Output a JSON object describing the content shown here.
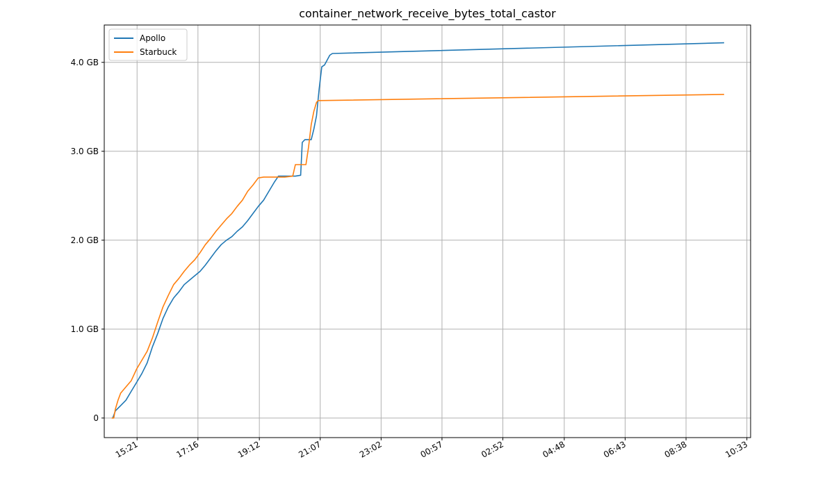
{
  "chart_data": {
    "type": "line",
    "title": "container_network_receive_bytes_total_castor",
    "xlabel": "",
    "ylabel": "",
    "x_ticks": [
      "15:21",
      "17:16",
      "19:12",
      "21:07",
      "23:02",
      "00:57",
      "02:52",
      "04:48",
      "06:43",
      "08:38",
      "10:33"
    ],
    "y_ticks": [
      {
        "value": 0,
        "label": "0"
      },
      {
        "value": 1.0,
        "label": "1.0 GB"
      },
      {
        "value": 2.0,
        "label": "2.0 GB"
      },
      {
        "value": 3.0,
        "label": "3.0 GB"
      },
      {
        "value": 4.0,
        "label": "4.0 GB"
      }
    ],
    "xlim": [
      "14:19",
      "10:40"
    ],
    "ylim": [
      -0.22,
      4.42
    ],
    "y_unit": "GB",
    "grid": true,
    "legend_position": "top-left",
    "series": [
      {
        "name": "Apollo",
        "color": "#1f77b4",
        "points": [
          [
            "14:35",
            0.0
          ],
          [
            "14:40",
            0.08
          ],
          [
            "14:50",
            0.14
          ],
          [
            "15:00",
            0.2
          ],
          [
            "15:10",
            0.3
          ],
          [
            "15:20",
            0.4
          ],
          [
            "15:30",
            0.5
          ],
          [
            "15:40",
            0.62
          ],
          [
            "15:50",
            0.8
          ],
          [
            "16:00",
            0.95
          ],
          [
            "16:10",
            1.12
          ],
          [
            "16:20",
            1.25
          ],
          [
            "16:30",
            1.35
          ],
          [
            "16:40",
            1.42
          ],
          [
            "16:50",
            1.5
          ],
          [
            "17:00",
            1.55
          ],
          [
            "17:10",
            1.6
          ],
          [
            "17:20",
            1.65
          ],
          [
            "17:30",
            1.72
          ],
          [
            "17:40",
            1.8
          ],
          [
            "17:50",
            1.88
          ],
          [
            "18:00",
            1.95
          ],
          [
            "18:10",
            2.0
          ],
          [
            "18:20",
            2.04
          ],
          [
            "18:30",
            2.1
          ],
          [
            "18:40",
            2.15
          ],
          [
            "18:50",
            2.22
          ],
          [
            "19:00",
            2.3
          ],
          [
            "19:10",
            2.38
          ],
          [
            "19:20",
            2.45
          ],
          [
            "19:30",
            2.55
          ],
          [
            "19:40",
            2.65
          ],
          [
            "19:48",
            2.72
          ],
          [
            "20:00",
            2.72
          ],
          [
            "20:20",
            2.72
          ],
          [
            "20:30",
            2.73
          ],
          [
            "20:33",
            3.1
          ],
          [
            "20:38",
            3.13
          ],
          [
            "20:50",
            3.13
          ],
          [
            "20:55",
            3.25
          ],
          [
            "21:00",
            3.4
          ],
          [
            "21:05",
            3.7
          ],
          [
            "21:10",
            3.95
          ],
          [
            "21:15",
            3.97
          ],
          [
            "21:25",
            4.08
          ],
          [
            "21:30",
            4.1
          ],
          [
            "09:50",
            4.22
          ]
        ]
      },
      {
        "name": "Starbuck",
        "color": "#ff7f0e",
        "points": [
          [
            "14:33",
            0.0
          ],
          [
            "14:37",
            0.0
          ],
          [
            "14:40",
            0.1
          ],
          [
            "14:45",
            0.2
          ],
          [
            "14:50",
            0.28
          ],
          [
            "15:00",
            0.35
          ],
          [
            "15:10",
            0.42
          ],
          [
            "15:20",
            0.55
          ],
          [
            "15:30",
            0.65
          ],
          [
            "15:40",
            0.75
          ],
          [
            "15:50",
            0.9
          ],
          [
            "16:00",
            1.08
          ],
          [
            "16:10",
            1.25
          ],
          [
            "16:20",
            1.38
          ],
          [
            "16:30",
            1.5
          ],
          [
            "16:40",
            1.57
          ],
          [
            "16:50",
            1.65
          ],
          [
            "17:00",
            1.72
          ],
          [
            "17:10",
            1.78
          ],
          [
            "17:20",
            1.86
          ],
          [
            "17:30",
            1.95
          ],
          [
            "17:40",
            2.02
          ],
          [
            "17:50",
            2.1
          ],
          [
            "18:00",
            2.17
          ],
          [
            "18:10",
            2.24
          ],
          [
            "18:20",
            2.3
          ],
          [
            "18:30",
            2.38
          ],
          [
            "18:40",
            2.45
          ],
          [
            "18:50",
            2.55
          ],
          [
            "19:00",
            2.62
          ],
          [
            "19:10",
            2.7
          ],
          [
            "19:20",
            2.71
          ],
          [
            "20:00",
            2.71
          ],
          [
            "20:15",
            2.72
          ],
          [
            "20:20",
            2.85
          ],
          [
            "20:40",
            2.85
          ],
          [
            "20:45",
            3.05
          ],
          [
            "20:50",
            3.3
          ],
          [
            "20:55",
            3.45
          ],
          [
            "21:00",
            3.55
          ],
          [
            "21:03",
            3.57
          ],
          [
            "09:50",
            3.64
          ]
        ]
      }
    ]
  }
}
